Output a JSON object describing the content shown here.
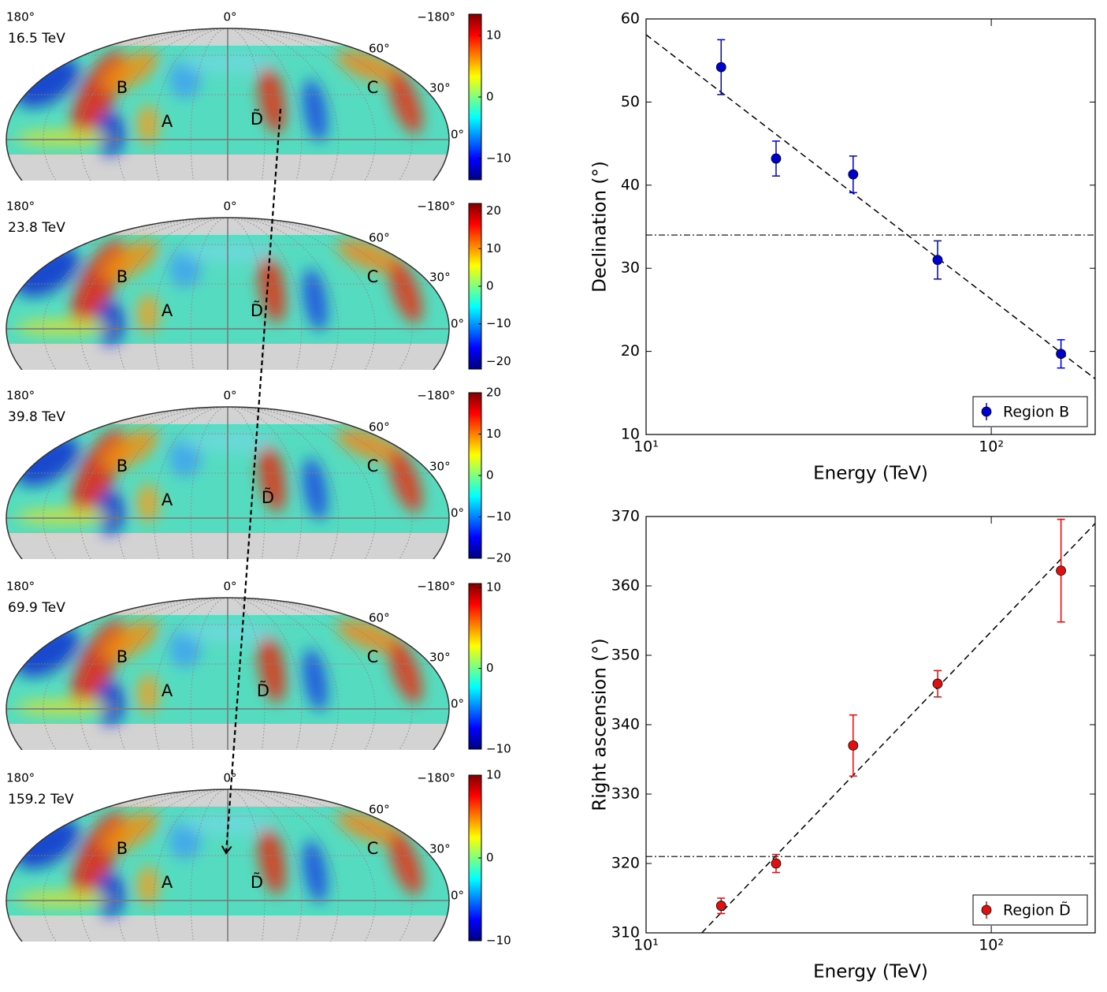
{
  "chart_data": [
    {
      "type": "skymap",
      "title": "16.5 TeV",
      "lon_labels": [
        "180°",
        "0°",
        "−180°"
      ],
      "lat_labels": [
        "60°",
        "30°",
        "0°"
      ],
      "regions": [
        "B",
        "A",
        "D̃",
        "C"
      ],
      "colorbar_lim": [
        -13.5,
        13.5
      ],
      "colorbar_ticks": [
        {
          "value": -10,
          "label": "−10"
        },
        0,
        10
      ]
    },
    {
      "type": "skymap",
      "title": "23.8 TeV",
      "lon_labels": [
        "180°",
        "0°",
        "−180°"
      ],
      "lat_labels": [
        "60°",
        "30°",
        "0°"
      ],
      "regions": [
        "B",
        "A",
        "D̃",
        "C"
      ],
      "colorbar_lim": [
        -22,
        22
      ],
      "colorbar_ticks": [
        {
          "value": -20,
          "label": "−20"
        },
        {
          "value": -10,
          "label": "−10"
        },
        0,
        10,
        20
      ]
    },
    {
      "type": "skymap",
      "title": "39.8 TeV",
      "lon_labels": [
        "180°",
        "0°",
        "−180°"
      ],
      "lat_labels": [
        "60°",
        "30°",
        "0°"
      ],
      "regions": [
        "B",
        "A",
        "D̃",
        "C"
      ],
      "colorbar_lim": [
        -20,
        20
      ],
      "colorbar_ticks": [
        {
          "value": -20,
          "label": "−20"
        },
        {
          "value": -10,
          "label": "−10"
        },
        0,
        10,
        20
      ]
    },
    {
      "type": "skymap",
      "title": "69.9 TeV",
      "lon_labels": [
        "180°",
        "0°",
        "−180°"
      ],
      "lat_labels": [
        "60°",
        "30°",
        "0°"
      ],
      "regions": [
        "B",
        "A",
        "D̃",
        "C"
      ],
      "colorbar_lim": [
        -10,
        10.5
      ],
      "colorbar_ticks": [
        {
          "value": -10,
          "label": "−10"
        },
        0,
        10
      ]
    },
    {
      "type": "skymap",
      "title": "159.2 TeV",
      "lon_labels": [
        "180°",
        "0°",
        "−180°"
      ],
      "lat_labels": [
        "60°",
        "30°",
        "0°"
      ],
      "regions": [
        "B",
        "A",
        "D̃",
        "C"
      ],
      "colorbar_lim": [
        -10,
        10
      ],
      "colorbar_ticks": [
        {
          "value": -10,
          "label": "−10"
        },
        0,
        10
      ]
    },
    {
      "type": "errorbar",
      "xlabel": "Energy (TeV)",
      "ylabel": "Declination (°)",
      "xlog": true,
      "xlim": [
        10,
        200
      ],
      "xticks": [
        {
          "value": 10,
          "label": "10¹"
        },
        {
          "value": 100,
          "label": "10²"
        }
      ],
      "ylim": [
        10,
        60
      ],
      "yticks": [
        10,
        20,
        30,
        40,
        50,
        60
      ],
      "legend": "lower right",
      "series": [
        {
          "name": "Region B",
          "color": "#0000cc",
          "x": [
            16.5,
            23.8,
            39.8,
            69.9,
            159.2
          ],
          "values": [
            54.2,
            43.2,
            41.3,
            31.0,
            19.7
          ],
          "errors": [
            3.3,
            2.1,
            2.2,
            2.3,
            1.7
          ]
        }
      ],
      "fit_line": {
        "x": [
          10,
          200
        ],
        "y": [
          58.1,
          16.7
        ]
      },
      "hline": 34
    },
    {
      "type": "errorbar",
      "xlabel": "Energy (TeV)",
      "ylabel": "Right ascension (°)",
      "xlog": true,
      "xlim": [
        10,
        200
      ],
      "xticks": [
        {
          "value": 10,
          "label": "10¹"
        },
        {
          "value": 100,
          "label": "10²"
        }
      ],
      "ylim": [
        310,
        370
      ],
      "yticks": [
        310,
        320,
        330,
        340,
        350,
        360,
        370
      ],
      "legend": "lower right",
      "series": [
        {
          "name": "Region D̃",
          "color": "#dd1111",
          "x": [
            16.5,
            23.8,
            39.8,
            69.9,
            159.2
          ],
          "values": [
            313.9,
            320.0,
            337.0,
            345.9,
            362.2
          ],
          "errors": [
            1.1,
            1.3,
            4.4,
            1.9,
            7.4
          ]
        }
      ],
      "fit_line": {
        "x": [
          14.5,
          200
        ],
        "y": [
          310,
          369
        ]
      },
      "hline": 321
    }
  ]
}
